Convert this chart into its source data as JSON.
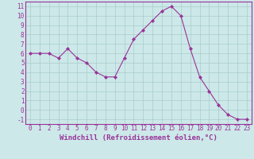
{
  "x": [
    0,
    1,
    2,
    3,
    4,
    5,
    6,
    7,
    8,
    9,
    10,
    11,
    12,
    13,
    14,
    15,
    16,
    17,
    18,
    19,
    20,
    21,
    22,
    23
  ],
  "y": [
    6,
    6,
    6,
    5.5,
    6.5,
    5.5,
    5,
    4,
    3.5,
    3.5,
    5.5,
    7.5,
    8.5,
    9.5,
    10.5,
    11,
    10,
    6.5,
    3.5,
    2,
    0.5,
    -0.5,
    -1,
    -1
  ],
  "line_color": "#993399",
  "marker": "D",
  "marker_size": 2,
  "bg_color": "#cce8e8",
  "grid_color": "#aacccc",
  "xlabel": "Windchill (Refroidissement éolien,°C)",
  "ylim": [
    -1.5,
    11.5
  ],
  "xlim": [
    -0.5,
    23.5
  ],
  "yticks": [
    -1,
    0,
    1,
    2,
    3,
    4,
    5,
    6,
    7,
    8,
    9,
    10,
    11
  ],
  "xticks": [
    0,
    1,
    2,
    3,
    4,
    5,
    6,
    7,
    8,
    9,
    10,
    11,
    12,
    13,
    14,
    15,
    16,
    17,
    18,
    19,
    20,
    21,
    22,
    23
  ],
  "tick_fontsize": 5.5,
  "label_fontsize": 6.5
}
